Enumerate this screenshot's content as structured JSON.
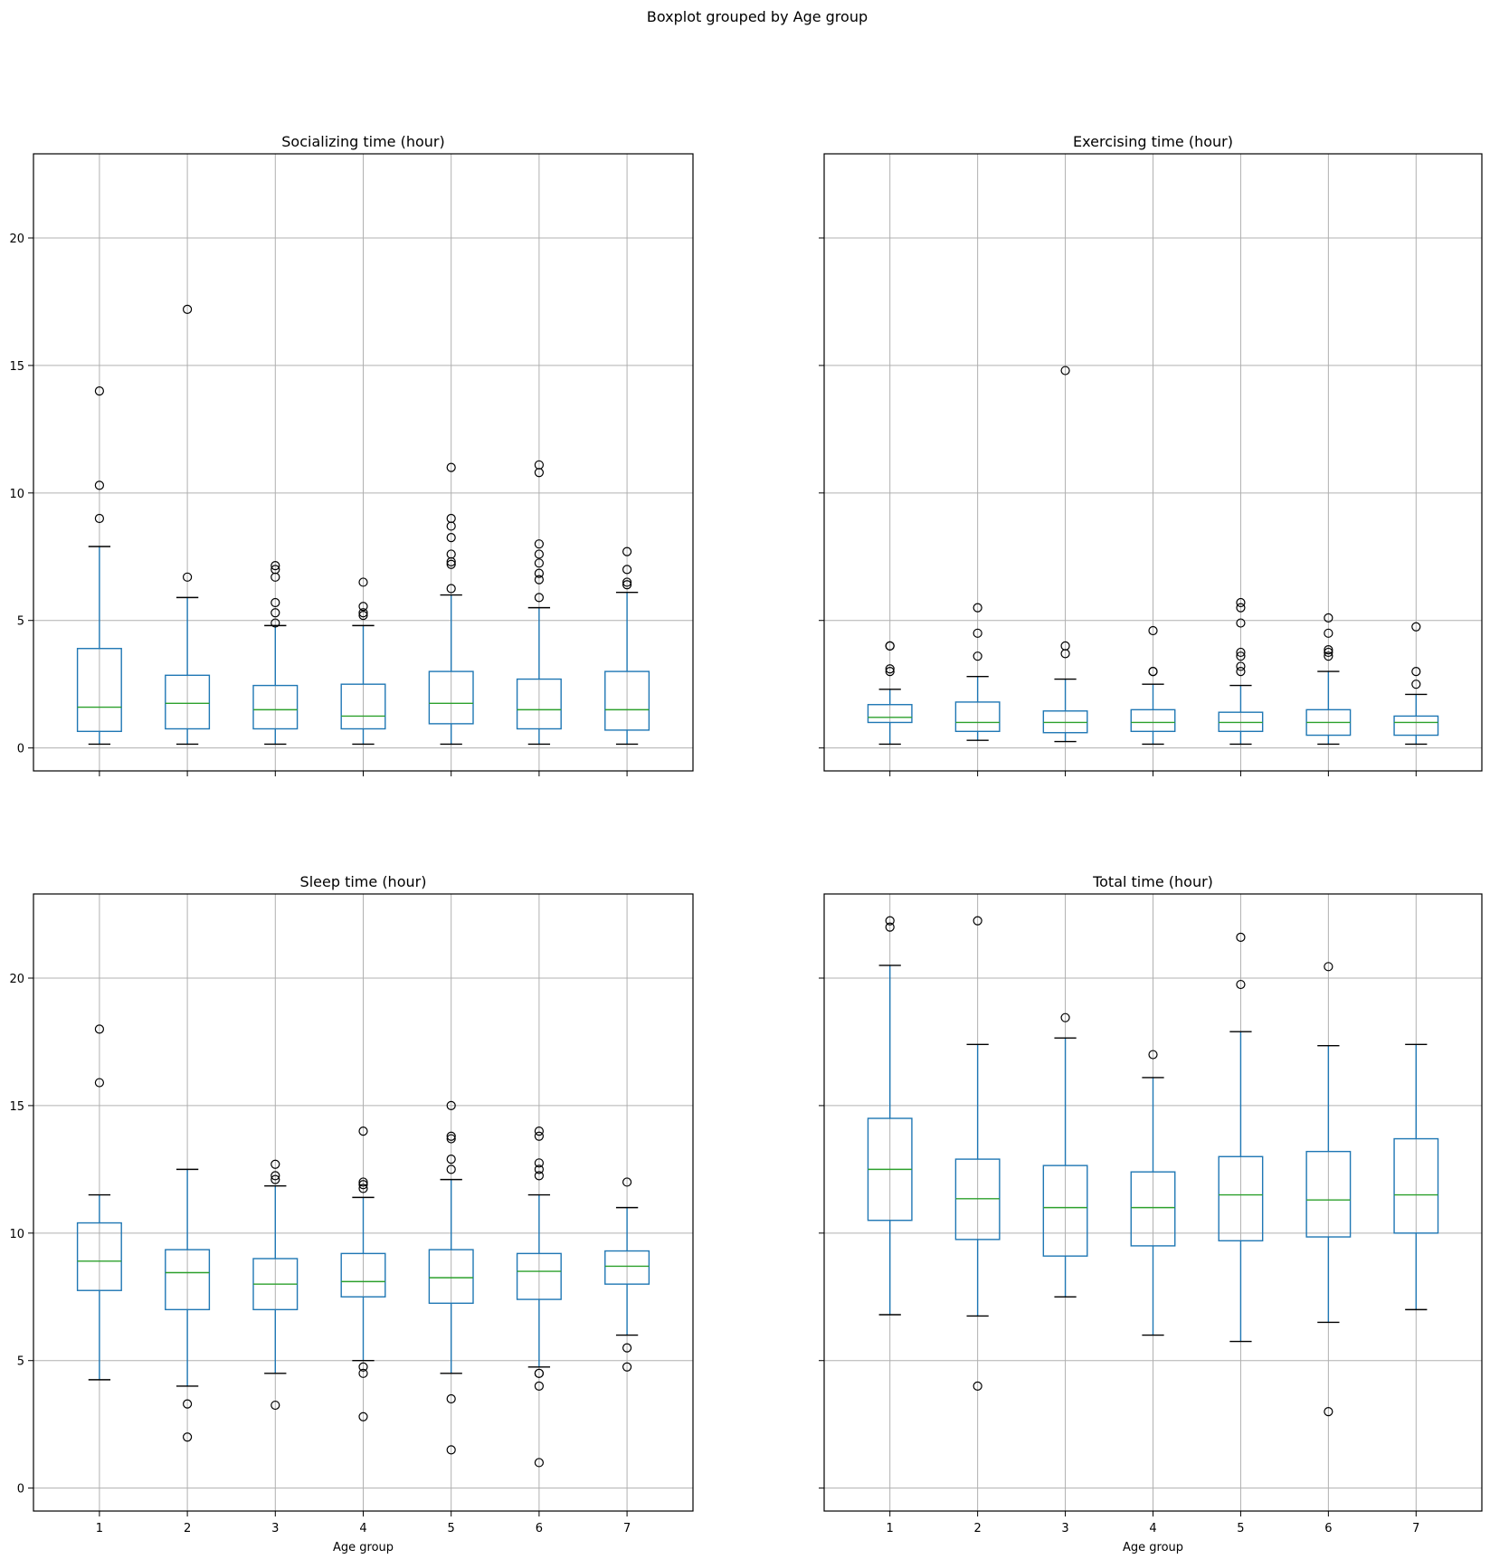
{
  "figure": {
    "suptitle": "Boxplot grouped by Age group"
  },
  "colors": {
    "box": "#1f77b4",
    "median": "#2ca02c",
    "grid": "#b0b0b0",
    "cap": "#000000",
    "flier_edge": "#000000"
  },
  "chart_data": [
    {
      "type": "box",
      "title": "Socializing time (hour)",
      "xlabel": "",
      "ylabel": "",
      "categories": [
        "1",
        "2",
        "3",
        "4",
        "5",
        "6",
        "7"
      ],
      "ylim": [
        -0.9,
        23.3
      ],
      "yticks": [
        0,
        5,
        10,
        15,
        20
      ],
      "show_ytick_labels": true,
      "show_xtick_labels": false,
      "grid": true,
      "boxes": [
        {
          "whislo": 0.15,
          "q1": 0.65,
          "med": 1.6,
          "q3": 3.9,
          "whishi": 7.9,
          "fliers": [
            14.0,
            10.3,
            9.0
          ]
        },
        {
          "whislo": 0.15,
          "q1": 0.75,
          "med": 1.75,
          "q3": 2.85,
          "whishi": 5.9,
          "fliers": [
            17.2,
            6.7
          ]
        },
        {
          "whislo": 0.15,
          "q1": 0.75,
          "med": 1.5,
          "q3": 2.45,
          "whishi": 4.8,
          "fliers": [
            7.15,
            7.0,
            6.7,
            5.7,
            5.3,
            4.9
          ]
        },
        {
          "whislo": 0.15,
          "q1": 0.75,
          "med": 1.25,
          "q3": 2.5,
          "whishi": 4.8,
          "fliers": [
            6.5,
            5.55,
            5.3,
            5.2
          ]
        },
        {
          "whislo": 0.15,
          "q1": 0.95,
          "med": 1.75,
          "q3": 3.0,
          "whishi": 6.0,
          "fliers": [
            11.0,
            9.0,
            8.7,
            8.25,
            7.6,
            7.3,
            7.2,
            6.25
          ]
        },
        {
          "whislo": 0.15,
          "q1": 0.75,
          "med": 1.5,
          "q3": 2.7,
          "whishi": 5.5,
          "fliers": [
            11.1,
            10.8,
            8.0,
            7.6,
            7.25,
            6.85,
            6.6,
            5.9
          ]
        },
        {
          "whislo": 0.15,
          "q1": 0.7,
          "med": 1.5,
          "q3": 3.0,
          "whishi": 6.1,
          "fliers": [
            7.7,
            7.0,
            6.5,
            6.4
          ]
        }
      ]
    },
    {
      "type": "box",
      "title": "Exercising time (hour)",
      "xlabel": "",
      "ylabel": "",
      "categories": [
        "1",
        "2",
        "3",
        "4",
        "5",
        "6",
        "7"
      ],
      "ylim": [
        -0.9,
        23.3
      ],
      "yticks": [
        0,
        5,
        10,
        15,
        20
      ],
      "show_ytick_labels": false,
      "show_xtick_labels": false,
      "grid": true,
      "boxes": [
        {
          "whislo": 0.15,
          "q1": 1.0,
          "med": 1.2,
          "q3": 1.7,
          "whishi": 2.3,
          "fliers": [
            4.0,
            4.0,
            3.1,
            3.0
          ]
        },
        {
          "whislo": 0.3,
          "q1": 0.65,
          "med": 1.0,
          "q3": 1.8,
          "whishi": 2.8,
          "fliers": [
            5.5,
            4.5,
            3.6
          ]
        },
        {
          "whislo": 0.25,
          "q1": 0.6,
          "med": 1.0,
          "q3": 1.45,
          "whishi": 2.7,
          "fliers": [
            14.8,
            4.0,
            3.7
          ]
        },
        {
          "whislo": 0.15,
          "q1": 0.65,
          "med": 1.0,
          "q3": 1.5,
          "whishi": 2.5,
          "fliers": [
            4.6,
            3.0,
            3.0
          ]
        },
        {
          "whislo": 0.15,
          "q1": 0.65,
          "med": 1.0,
          "q3": 1.4,
          "whishi": 2.45,
          "fliers": [
            5.7,
            5.5,
            4.9,
            3.75,
            3.6,
            3.2,
            3.0
          ]
        },
        {
          "whislo": 0.15,
          "q1": 0.5,
          "med": 1.0,
          "q3": 1.5,
          "whishi": 3.0,
          "fliers": [
            5.1,
            4.5,
            3.85,
            3.75,
            3.6
          ]
        },
        {
          "whislo": 0.15,
          "q1": 0.5,
          "med": 1.0,
          "q3": 1.25,
          "whishi": 2.1,
          "fliers": [
            4.75,
            3.0,
            2.5
          ]
        }
      ]
    },
    {
      "type": "box",
      "title": "Sleep time (hour)",
      "xlabel": "Age group",
      "ylabel": "",
      "categories": [
        "1",
        "2",
        "3",
        "4",
        "5",
        "6",
        "7"
      ],
      "ylim": [
        -0.9,
        23.3
      ],
      "yticks": [
        0,
        5,
        10,
        15,
        20
      ],
      "show_ytick_labels": true,
      "show_xtick_labels": true,
      "grid": true,
      "boxes": [
        {
          "whislo": 4.25,
          "q1": 7.75,
          "med": 8.9,
          "q3": 10.4,
          "whishi": 11.5,
          "fliers": [
            18.0,
            15.9
          ]
        },
        {
          "whislo": 4.0,
          "q1": 7.0,
          "med": 8.45,
          "q3": 9.35,
          "whishi": 12.5,
          "fliers": [
            3.3,
            2.0
          ]
        },
        {
          "whislo": 4.5,
          "q1": 7.0,
          "med": 8.0,
          "q3": 9.0,
          "whishi": 11.85,
          "fliers": [
            12.7,
            12.25,
            12.1,
            3.25
          ]
        },
        {
          "whislo": 5.0,
          "q1": 7.5,
          "med": 8.1,
          "q3": 9.2,
          "whishi": 11.4,
          "fliers": [
            14.0,
            12.0,
            11.9,
            11.75,
            4.75,
            4.5,
            2.8
          ]
        },
        {
          "whislo": 4.5,
          "q1": 7.25,
          "med": 8.25,
          "q3": 9.35,
          "whishi": 12.1,
          "fliers": [
            15.0,
            13.8,
            13.7,
            12.9,
            12.5,
            3.5,
            1.5
          ]
        },
        {
          "whislo": 4.75,
          "q1": 7.4,
          "med": 8.5,
          "q3": 9.2,
          "whishi": 11.5,
          "fliers": [
            14.0,
            13.8,
            12.75,
            12.5,
            12.25,
            4.5,
            4.5,
            4.0,
            1.0
          ]
        },
        {
          "whislo": 6.0,
          "q1": 8.0,
          "med": 8.7,
          "q3": 9.3,
          "whishi": 11.0,
          "fliers": [
            12.0,
            5.5,
            4.75
          ]
        }
      ]
    },
    {
      "type": "box",
      "title": "Total time (hour)",
      "xlabel": "Age group",
      "ylabel": "",
      "categories": [
        "1",
        "2",
        "3",
        "4",
        "5",
        "6",
        "7"
      ],
      "ylim": [
        -0.9,
        23.3
      ],
      "yticks": [
        0,
        5,
        10,
        15,
        20
      ],
      "show_ytick_labels": false,
      "show_xtick_labels": true,
      "grid": true,
      "boxes": [
        {
          "whislo": 6.8,
          "q1": 10.5,
          "med": 12.5,
          "q3": 14.5,
          "whishi": 20.5,
          "fliers": [
            22.25,
            22.0
          ]
        },
        {
          "whislo": 6.75,
          "q1": 9.75,
          "med": 11.35,
          "q3": 12.9,
          "whishi": 17.4,
          "fliers": [
            22.25,
            4.0
          ]
        },
        {
          "whislo": 7.5,
          "q1": 9.1,
          "med": 11.0,
          "q3": 12.65,
          "whishi": 17.65,
          "fliers": [
            18.45
          ]
        },
        {
          "whislo": 6.0,
          "q1": 9.5,
          "med": 11.0,
          "q3": 12.4,
          "whishi": 16.1,
          "fliers": [
            17.0
          ]
        },
        {
          "whislo": 5.75,
          "q1": 9.7,
          "med": 11.5,
          "q3": 13.0,
          "whishi": 17.9,
          "fliers": [
            21.6,
            19.75
          ]
        },
        {
          "whislo": 6.5,
          "q1": 9.85,
          "med": 11.3,
          "q3": 13.2,
          "whishi": 17.35,
          "fliers": [
            20.45,
            3.0
          ]
        },
        {
          "whislo": 7.0,
          "q1": 10.0,
          "med": 11.5,
          "q3": 13.7,
          "whishi": 17.4,
          "fliers": []
        }
      ]
    }
  ]
}
